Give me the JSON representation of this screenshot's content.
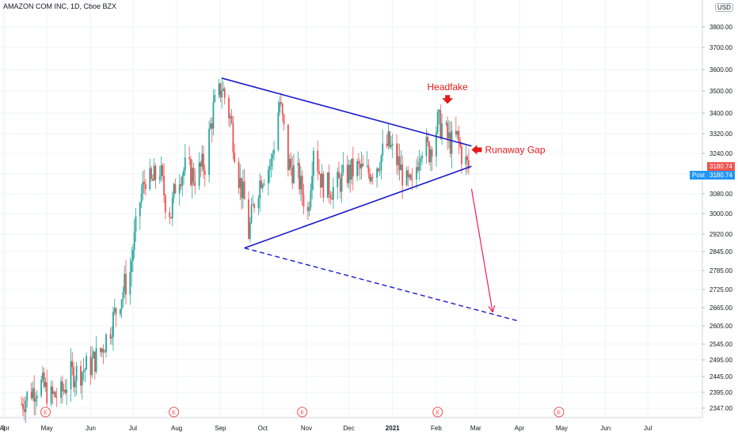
{
  "symbol_title": "AMAZON COM INC, 1D, Cboe BZX",
  "currency": "USD",
  "last_price_label": "3180.74",
  "post_label": "Post",
  "post_price_label": "3180.74",
  "colors": {
    "up": "#26a69a",
    "down": "#ef5350",
    "pattern": "#1a1acc",
    "annotation": "#e31b1b",
    "projection": "#e91e63",
    "last_price": "#ef5350",
    "post": "#2196f3"
  },
  "chart_data": {
    "type": "candlestick",
    "title": "AMAZON COM INC, 1D, Cboe BZX",
    "ylim": [
      2300,
      3880
    ],
    "y_ticks": [
      3800,
      3700,
      3600,
      3500,
      3400,
      3320,
      3240,
      3160,
      3080,
      3000,
      2920,
      2845,
      2785,
      2725,
      2665,
      2605,
      2545,
      2495,
      2445,
      2395,
      2347
    ],
    "y_tick_labels": [
      "3800.00",
      "3700.00",
      "3600.00",
      "3500.00",
      "3400.00",
      "3320.00",
      "3240.00",
      "3160.00",
      "3080.00",
      "3000.00",
      "2920.00",
      "2845.00",
      "2785.00",
      "2725.00",
      "2665.00",
      "2605.00",
      "2545.00",
      "2495.00",
      "2445.00",
      "2395.00",
      "2347.00"
    ],
    "x_ticks": [
      {
        "label": "3",
        "date": "2020-03-31"
      },
      {
        "label": "Apr",
        "date": "2020-04-01"
      },
      {
        "label": "May",
        "date": "2020-05-01"
      },
      {
        "label": "Jun",
        "date": "2020-06-01"
      },
      {
        "label": "Jul",
        "date": "2020-07-01"
      },
      {
        "label": "Aug",
        "date": "2020-08-01"
      },
      {
        "label": "Sep",
        "date": "2020-09-01"
      },
      {
        "label": "Oct",
        "date": "2020-10-01"
      },
      {
        "label": "Nov",
        "date": "2020-11-01"
      },
      {
        "label": "Dec",
        "date": "2020-12-01"
      },
      {
        "label": "2021",
        "date": "2021-01-01"
      },
      {
        "label": "Feb",
        "date": "2021-02-01"
      },
      {
        "label": "Mar",
        "date": "2021-03-01"
      },
      {
        "label": "Apr",
        "date": "2021-04-01"
      },
      {
        "label": "May",
        "date": "2021-05-01"
      },
      {
        "label": "Jun",
        "date": "2021-06-01"
      },
      {
        "label": "Jul",
        "date": "2021-07-01"
      }
    ],
    "price_path": [
      [
        "2020-04-13",
        2360
      ],
      [
        "2020-04-20",
        2400
      ],
      [
        "2020-04-27",
        2420
      ],
      [
        "2020-05-04",
        2380
      ],
      [
        "2020-05-11",
        2390
      ],
      [
        "2020-05-18",
        2450
      ],
      [
        "2020-05-25",
        2460
      ],
      [
        "2020-06-01",
        2480
      ],
      [
        "2020-06-08",
        2520
      ],
      [
        "2020-06-15",
        2600
      ],
      [
        "2020-06-22",
        2700
      ],
      [
        "2020-06-29",
        2780
      ],
      [
        "2020-07-02",
        2900
      ],
      [
        "2020-07-06",
        3050
      ],
      [
        "2020-07-10",
        3150
      ],
      [
        "2020-07-14",
        3120
      ],
      [
        "2020-07-20",
        3180
      ],
      [
        "2020-07-24",
        3050
      ],
      [
        "2020-07-28",
        3000
      ],
      [
        "2020-08-01",
        3150
      ],
      [
        "2020-08-07",
        3180
      ],
      [
        "2020-08-14",
        3150
      ],
      [
        "2020-08-21",
        3200
      ],
      [
        "2020-08-27",
        3420
      ],
      [
        "2020-09-02",
        3520
      ],
      [
        "2020-09-08",
        3380
      ],
      [
        "2020-09-14",
        3150
      ],
      [
        "2020-09-18",
        3050
      ],
      [
        "2020-09-21",
        2920
      ],
      [
        "2020-09-25",
        3050
      ],
      [
        "2020-09-30",
        3150
      ],
      [
        "2020-10-07",
        3200
      ],
      [
        "2020-10-13",
        3450
      ],
      [
        "2020-10-19",
        3200
      ],
      [
        "2020-10-26",
        3150
      ],
      [
        "2020-11-02",
        3000
      ],
      [
        "2020-11-06",
        3280
      ],
      [
        "2020-11-12",
        3120
      ],
      [
        "2020-11-20",
        3100
      ],
      [
        "2020-11-30",
        3160
      ],
      [
        "2020-12-07",
        3180
      ],
      [
        "2020-12-14",
        3160
      ],
      [
        "2020-12-21",
        3200
      ],
      [
        "2020-12-29",
        3280
      ],
      [
        "2021-01-05",
        3200
      ],
      [
        "2021-01-11",
        3120
      ],
      [
        "2021-01-15",
        3100
      ],
      [
        "2021-01-21",
        3280
      ],
      [
        "2021-01-27",
        3250
      ],
      [
        "2021-02-02",
        3360
      ],
      [
        "2021-02-05",
        3350
      ],
      [
        "2021-02-09",
        3300
      ],
      [
        "2021-02-12",
        3280
      ],
      [
        "2021-02-16",
        3300
      ],
      [
        "2021-02-19",
        3240
      ],
      [
        "2021-02-24",
        3180
      ]
    ],
    "drawings": {
      "upper_trendline": [
        [
          "2020-09-02",
          3560
        ],
        [
          "2021-02-26",
          3270
        ]
      ],
      "lower_trendline": [
        [
          "2020-09-18",
          2860
        ],
        [
          "2021-02-26",
          3190
        ]
      ],
      "projection_line": [
        [
          "2020-09-18",
          2860
        ],
        [
          "2021-04-01",
          2620
        ]
      ],
      "target_arrow": [
        [
          "2021-02-26",
          3100
        ],
        [
          "2021-03-13",
          2650
        ]
      ]
    },
    "annotations": [
      {
        "text": "Headfake",
        "date": "2021-02-09",
        "price": 3460
      },
      {
        "text": "Runaway Gap",
        "date": "2021-02-26",
        "price": 3255
      }
    ],
    "earnings_markers": [
      {
        "label": "E",
        "date": "2020-04-30"
      },
      {
        "label": "E",
        "date": "2020-07-30"
      },
      {
        "label": "E",
        "date": "2020-10-29"
      },
      {
        "label": "E",
        "date": "2021-02-02"
      },
      {
        "label": "E",
        "date": "2021-04-29"
      }
    ]
  }
}
